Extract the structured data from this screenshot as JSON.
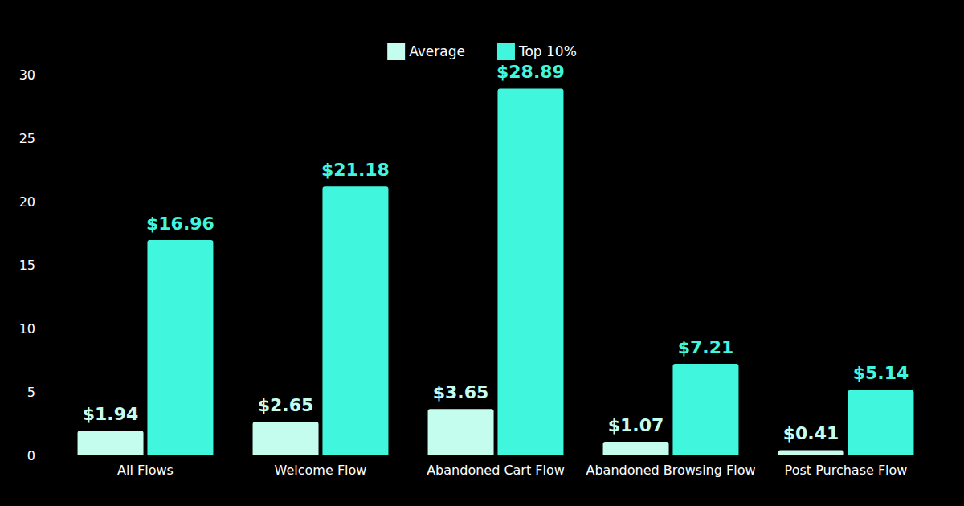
{
  "chart_data": {
    "type": "bar",
    "categories": [
      "All Flows",
      "Welcome Flow",
      "Abandoned Cart Flow",
      "Abandoned Browsing Flow",
      "Post Purchase Flow"
    ],
    "series": [
      {
        "name": "Average",
        "color": "#c4fcee",
        "values": [
          1.94,
          2.65,
          3.65,
          1.07,
          0.41
        ],
        "value_labels": [
          "$1.94",
          "$2.65",
          "$3.65",
          "$1.07",
          "$0.41"
        ]
      },
      {
        "name": "Top 10%",
        "color": "#40f7dd",
        "values": [
          16.96,
          21.18,
          28.89,
          7.21,
          5.14
        ],
        "value_labels": [
          "$16.96",
          "$21.18",
          "$28.89",
          "$7.21",
          "$5.14"
        ]
      }
    ],
    "ylim": [
      0,
      30
    ],
    "yticks": [
      0,
      5,
      10,
      15,
      20,
      25,
      30
    ],
    "grid": false,
    "legend": "top",
    "data_labels": true
  }
}
